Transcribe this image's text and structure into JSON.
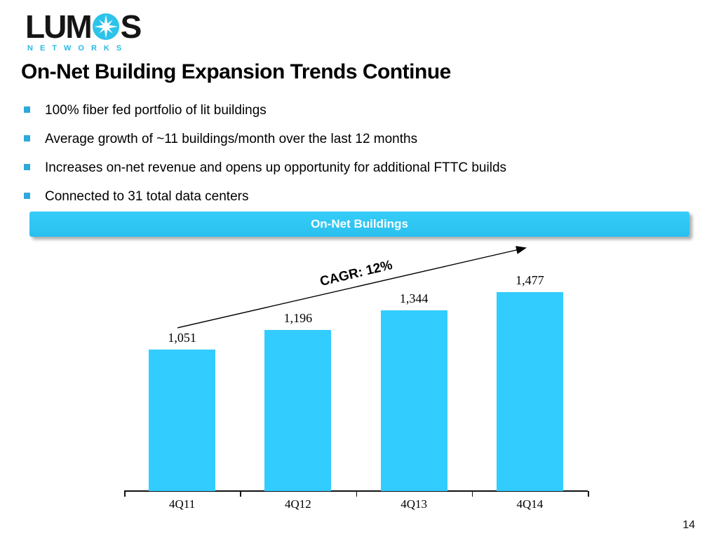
{
  "logo": {
    "text_left": "LUM",
    "text_right": "S",
    "o_icon": "starburst-circle-icon",
    "subtitle": "NETWORKS"
  },
  "title": "On-Net Building Expansion Trends Continue",
  "bullets": [
    "100% fiber fed portfolio of lit buildings",
    "Average growth of ~11 buildings/month over the last 12 months",
    "Increases on-net revenue and opens up opportunity for additional FTTC builds",
    "Connected to 31 total data centers"
  ],
  "banner": {
    "label": "On-Net Buildings"
  },
  "chart_data": {
    "type": "bar",
    "title": "On-Net Buildings",
    "categories": [
      "4Q11",
      "4Q12",
      "4Q13",
      "4Q14"
    ],
    "values": [
      1051,
      1196,
      1344,
      1477
    ],
    "value_labels": [
      "1,051",
      "1,196",
      "1,344",
      "1,477"
    ],
    "annotation": "CAGR: 12%",
    "xlabel": "",
    "ylabel": "",
    "ylim": [
      0,
      1550
    ],
    "grid": false,
    "legend": "none",
    "bar_color": "#33ccff",
    "value_labels_position": "above-bars"
  },
  "footer": {
    "page_number": "14"
  },
  "colors": {
    "accent_cyan": "#33ccff",
    "bullet_square_blue": "#2fa8dc",
    "logo_cyan": "#29b9e4",
    "banner_text": "#ffffff",
    "text_black": "#000000"
  }
}
